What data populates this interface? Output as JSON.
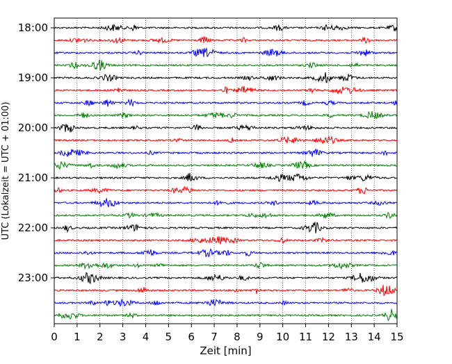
{
  "chart_data": {
    "type": "line",
    "title": "",
    "xlabel": "Zeit  [min]",
    "ylabel": "UTC (Lokalzeit = UTC + 01:00)",
    "xlim": [
      0,
      15
    ],
    "x_ticks": [
      "0",
      "1",
      "2",
      "3",
      "4",
      "5",
      "6",
      "7",
      "8",
      "9",
      "10",
      "11",
      "12",
      "13",
      "14",
      "15"
    ],
    "y_range": [
      "17:45",
      "23:59"
    ],
    "y_ticks": [
      "18:00",
      "19:00",
      "20:00",
      "21:00",
      "22:00",
      "23:00"
    ],
    "trace_interval_minutes": 15,
    "grid": "vertical dotted",
    "legend": "none",
    "color_cycle": [
      "#000000",
      "#ff0000",
      "#0000ff",
      "#008000"
    ],
    "traces": [
      {
        "start": "18:00",
        "color": "#000000"
      },
      {
        "start": "18:15",
        "color": "#ff0000"
      },
      {
        "start": "18:30",
        "color": "#0000ff"
      },
      {
        "start": "18:45",
        "color": "#008000"
      },
      {
        "start": "19:00",
        "color": "#000000"
      },
      {
        "start": "19:15",
        "color": "#ff0000"
      },
      {
        "start": "19:30",
        "color": "#0000ff"
      },
      {
        "start": "19:45",
        "color": "#008000"
      },
      {
        "start": "20:00",
        "color": "#000000"
      },
      {
        "start": "20:15",
        "color": "#ff0000"
      },
      {
        "start": "20:30",
        "color": "#0000ff"
      },
      {
        "start": "20:45",
        "color": "#008000"
      },
      {
        "start": "21:00",
        "color": "#000000"
      },
      {
        "start": "21:15",
        "color": "#ff0000"
      },
      {
        "start": "21:30",
        "color": "#0000ff"
      },
      {
        "start": "21:45",
        "color": "#008000"
      },
      {
        "start": "22:00",
        "color": "#000000"
      },
      {
        "start": "22:15",
        "color": "#ff0000"
      },
      {
        "start": "22:30",
        "color": "#0000ff"
      },
      {
        "start": "22:45",
        "color": "#008000"
      },
      {
        "start": "23:00",
        "color": "#000000"
      },
      {
        "start": "23:15",
        "color": "#ff0000"
      },
      {
        "start": "23:30",
        "color": "#0000ff"
      },
      {
        "start": "23:45",
        "color": "#008000"
      }
    ]
  }
}
